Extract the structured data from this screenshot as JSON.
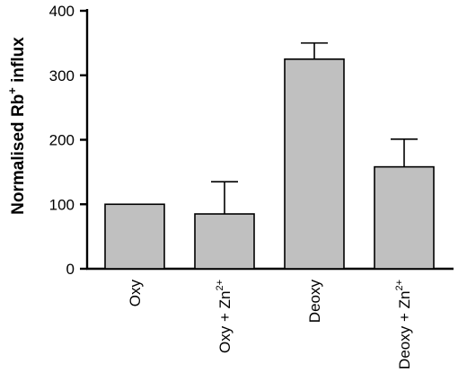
{
  "chart_data": {
    "type": "bar",
    "title": "",
    "xlabel": "",
    "ylabel": {
      "parts": [
        {
          "text": "Normalised Rb",
          "sup": false
        },
        {
          "text": "+",
          "sup": true
        },
        {
          "text": " influx",
          "sup": false
        }
      ]
    },
    "categories": [
      {
        "parts": [
          {
            "text": "Oxy",
            "sup": false
          }
        ]
      },
      {
        "parts": [
          {
            "text": "Oxy + Zn",
            "sup": false
          },
          {
            "text": "2+",
            "sup": true
          }
        ]
      },
      {
        "parts": [
          {
            "text": "Deoxy",
            "sup": false
          }
        ]
      },
      {
        "parts": [
          {
            "text": "Deoxy + Zn",
            "sup": false
          },
          {
            "text": "2+",
            "sup": true
          }
        ]
      }
    ],
    "values": [
      100,
      85,
      325,
      158
    ],
    "error_upper": [
      0,
      50,
      25,
      43
    ],
    "ylim": [
      0,
      400
    ],
    "yticks": [
      0,
      100,
      200,
      300,
      400
    ],
    "bar_color": "#c0c0c0",
    "bar_edge_color": "#000000",
    "grid": false,
    "legend": "none"
  }
}
